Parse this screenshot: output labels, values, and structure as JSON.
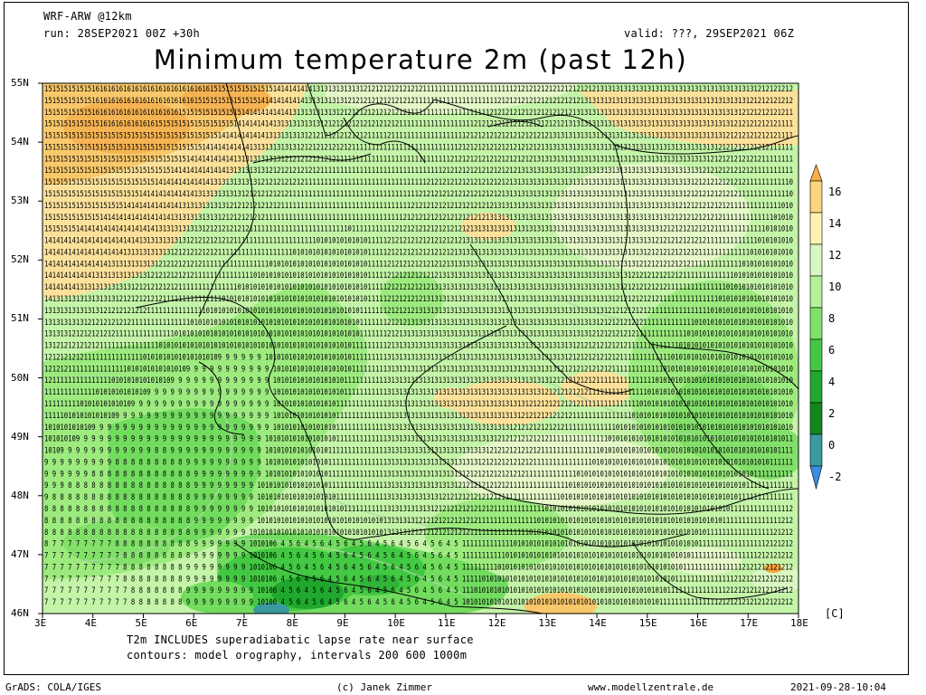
{
  "header": {
    "model": "WRF-ARW @12km",
    "run": "run: 28SEP2021 00Z +30h",
    "valid": "valid: ???, 29SEP2021 06Z",
    "title": "Minimum temperature 2m (past 12h)"
  },
  "map": {
    "lat_labels": [
      "55N",
      "54N",
      "53N",
      "52N",
      "51N",
      "50N",
      "49N",
      "48N",
      "47N",
      "46N"
    ],
    "lon_labels": [
      "3E",
      "4E",
      "5E",
      "6E",
      "7E",
      "8E",
      "9E",
      "10E",
      "11E",
      "12E",
      "13E",
      "14E",
      "15E",
      "16E",
      "17E",
      "18E"
    ],
    "extent": {
      "lon_min": 3,
      "lon_max": 18,
      "lat_min": 46,
      "lat_max": 55
    },
    "field": "2 m minimum temperature [C]",
    "grid_values_visible": true
  },
  "colorbar": {
    "labels": [
      "16",
      "14",
      "12",
      "10",
      "8",
      "6",
      "4",
      "2",
      "0",
      "-2"
    ],
    "colors": [
      "#f7b04a",
      "#fbd57d",
      "#fff3b3",
      "#d9f7c0",
      "#b5f09a",
      "#7fe06a",
      "#43c843",
      "#1fa82d",
      "#14861e",
      "#3a9aa0",
      "#3a8de0"
    ],
    "unit": "[C]"
  },
  "notes": {
    "line1": "T2m INCLUDES superadiabatic lapse rate near surface",
    "line2": "contours: model orography, intervals 200 600 1000m"
  },
  "footer": {
    "grads": "GrADS: COLA/IGES",
    "author": "(c) Janek Zimmer",
    "site": "www.modellzentrale.de",
    "timestamp": "2021-09-28-10:04"
  }
}
